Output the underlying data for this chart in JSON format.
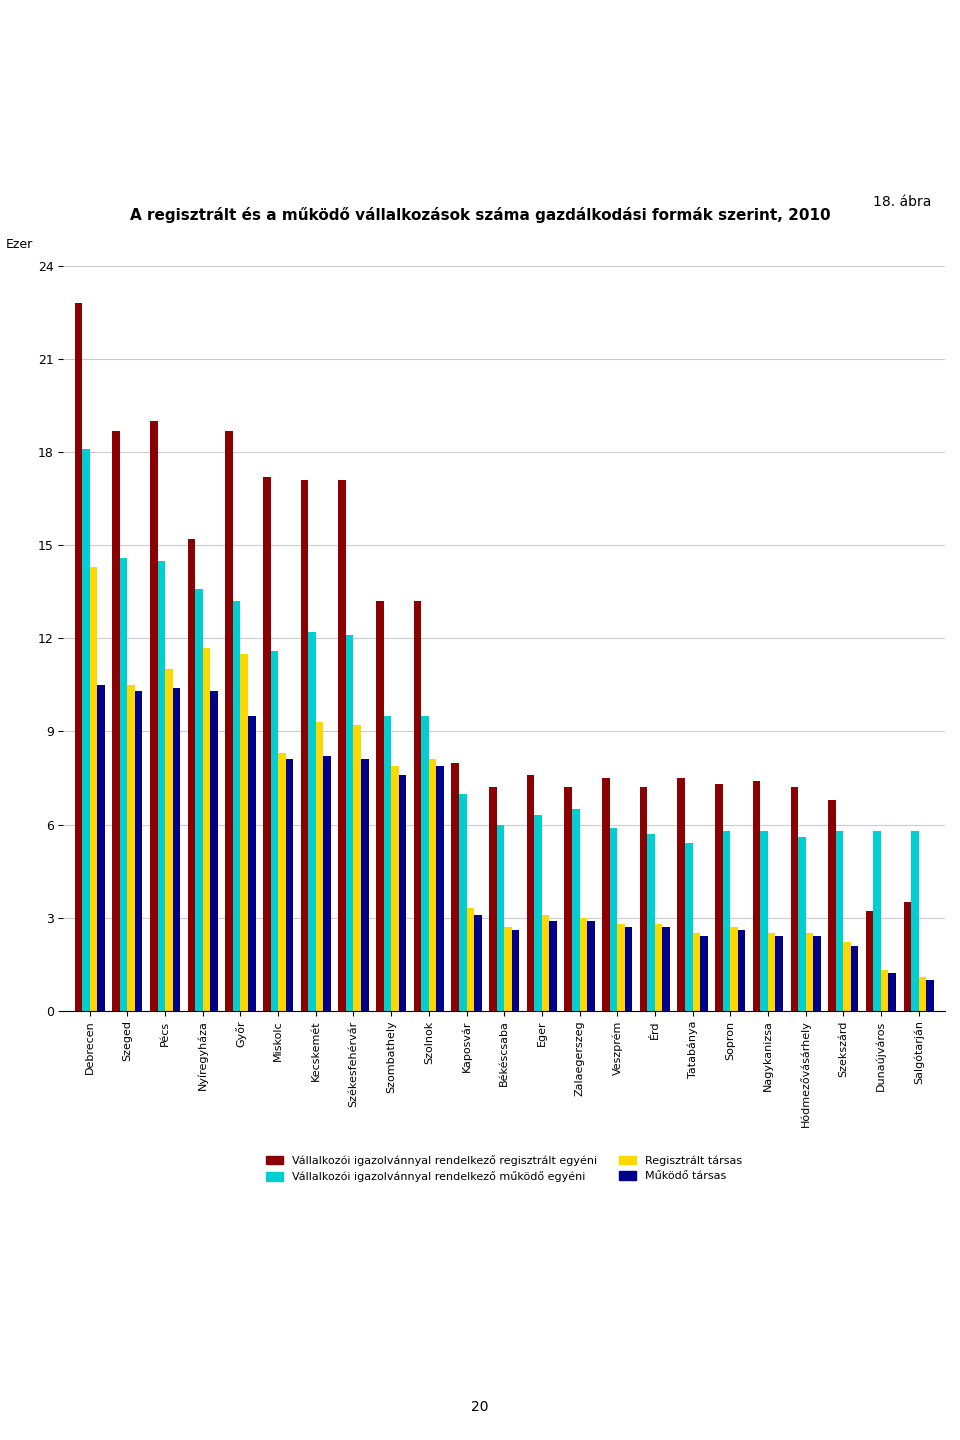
{
  "title": "A regisztrált és a működő vállalkozások száma gazdálkodási formák szerint, 2010",
  "subtitle_right": "18. ábra",
  "ylabel": "Ezer",
  "ylim": [
    0,
    24
  ],
  "yticks": [
    0,
    3,
    6,
    9,
    12,
    15,
    18,
    21,
    24
  ],
  "categories": [
    "Debrecen",
    "Szeged",
    "Pécs",
    "Nyíregyháza",
    "Győr",
    "Miskolc",
    "Kecskemét",
    "Székesfehérvár",
    "Szombathely",
    "Szolnok",
    "Kaposvár",
    "Békéscsaba",
    "Eger",
    "Zalaegerszeg",
    "Veszprém",
    "Érd",
    "Tatabánya",
    "Sopron",
    "Nagykanizsa",
    "Hódmezővásárhely",
    "Szekszárd",
    "Dunaújváros",
    "Salgótarján"
  ],
  "series": {
    "reg_egyeni": [
      22.8,
      18.7,
      19.0,
      15.2,
      18.7,
      17.2,
      17.1,
      17.1,
      13.2,
      13.2,
      8.0,
      7.2,
      7.6,
      7.2,
      7.5,
      7.2,
      7.5,
      7.3,
      7.4,
      7.2,
      6.8,
      3.2,
      3.5
    ],
    "muk_egyeni": [
      18.1,
      14.6,
      14.5,
      13.6,
      13.2,
      11.6,
      12.2,
      12.1,
      9.5,
      9.5,
      7.0,
      6.0,
      6.3,
      6.5,
      5.9,
      5.7,
      5.4,
      5.8,
      5.8,
      5.6,
      5.8,
      5.8,
      5.8
    ],
    "reg_tarsas": [
      14.3,
      10.5,
      11.0,
      11.7,
      11.5,
      8.3,
      9.3,
      9.2,
      7.9,
      8.1,
      3.3,
      2.7,
      3.1,
      3.0,
      2.8,
      2.8,
      2.5,
      2.7,
      2.5,
      2.5,
      2.2,
      1.3,
      1.1
    ],
    "muk_tarsas": [
      10.5,
      10.3,
      10.4,
      10.3,
      9.5,
      8.1,
      8.2,
      8.1,
      7.6,
      7.9,
      3.1,
      2.6,
      2.9,
      2.9,
      2.7,
      2.7,
      2.4,
      2.6,
      2.4,
      2.4,
      2.1,
      1.2,
      1.0
    ]
  },
  "colors": {
    "reg_egyeni": "#8B0000",
    "muk_egyeni": "#00CED1",
    "reg_tarsas": "#FFD700",
    "muk_tarsas": "#00008B"
  },
  "legend_labels": {
    "reg_egyeni": "Vállalkozói igazolvánnyal rendelkező regisztrált egyéni",
    "muk_egyeni": "Vállalkozói igazolvánnyal rendelkező működő egyéni",
    "reg_tarsas": "Regisztrált társas",
    "muk_tarsas": "Működő társas"
  },
  "background_color": "#ffffff",
  "grid_color": "#cccccc"
}
